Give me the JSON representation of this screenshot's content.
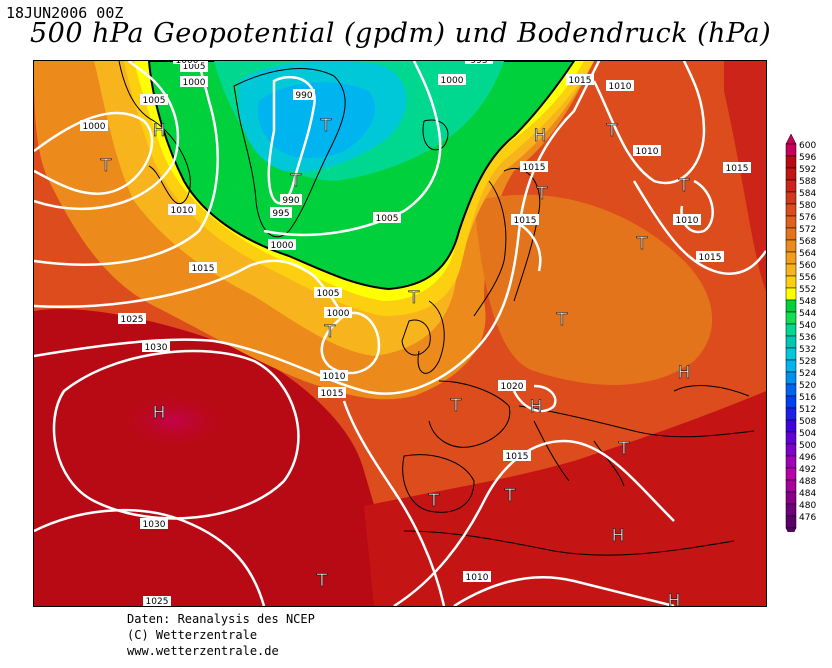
{
  "header": {
    "date": "18JUN2006 00Z",
    "title": "500 hPa Geopotential (gpdm) und Bodendruck (hPa)"
  },
  "legend": {
    "levels": [
      600,
      596,
      592,
      588,
      584,
      580,
      576,
      572,
      568,
      564,
      560,
      556,
      552,
      548,
      544,
      540,
      536,
      532,
      528,
      524,
      520,
      516,
      512,
      508,
      504,
      500,
      496,
      492,
      488,
      484,
      480,
      476
    ],
    "colors": [
      "#c8005a",
      "#b80a14",
      "#c41414",
      "#cc2418",
      "#d4381c",
      "#dc4c1c",
      "#e0601c",
      "#e4741c",
      "#ec8a1c",
      "#f49c1c",
      "#f8b41c",
      "#fcd010",
      "#ffff00",
      "#00d03c",
      "#10e050",
      "#00d890",
      "#00c8b0",
      "#00c8d8",
      "#00b4f0",
      "#0090f0",
      "#0064f0",
      "#0040f0",
      "#1c20e8",
      "#4000e0",
      "#6000d8",
      "#8000c8",
      "#a000b8",
      "#b800a8",
      "#a80098",
      "#880088",
      "#700078",
      "#5a0068"
    ]
  },
  "map": {
    "pressure_labels": [
      "1005",
      "1000",
      "1005",
      "1000",
      "1010",
      "1015",
      "1000",
      "990",
      "990",
      "995",
      "1000",
      "1005",
      "1000",
      "995",
      "1015",
      "1010",
      "1010",
      "1015",
      "1015",
      "1015",
      "1010",
      "1015",
      "1025",
      "1005",
      "1000",
      "1030",
      "1010",
      "1015",
      "1020",
      "1015",
      "1030",
      "1010",
      "1025"
    ],
    "systems": [
      "H",
      "T",
      "T",
      "T",
      "H",
      "T",
      "T",
      "T",
      "T",
      "T",
      "H",
      "T",
      "H",
      "T",
      "T",
      "T",
      "H",
      "T",
      "H",
      "H",
      "T"
    ]
  },
  "credits": {
    "line1": "Daten: Reanalysis des NCEP",
    "line2": "(C) Wetterzentrale",
    "line3": "www.wetterzentrale.de"
  }
}
